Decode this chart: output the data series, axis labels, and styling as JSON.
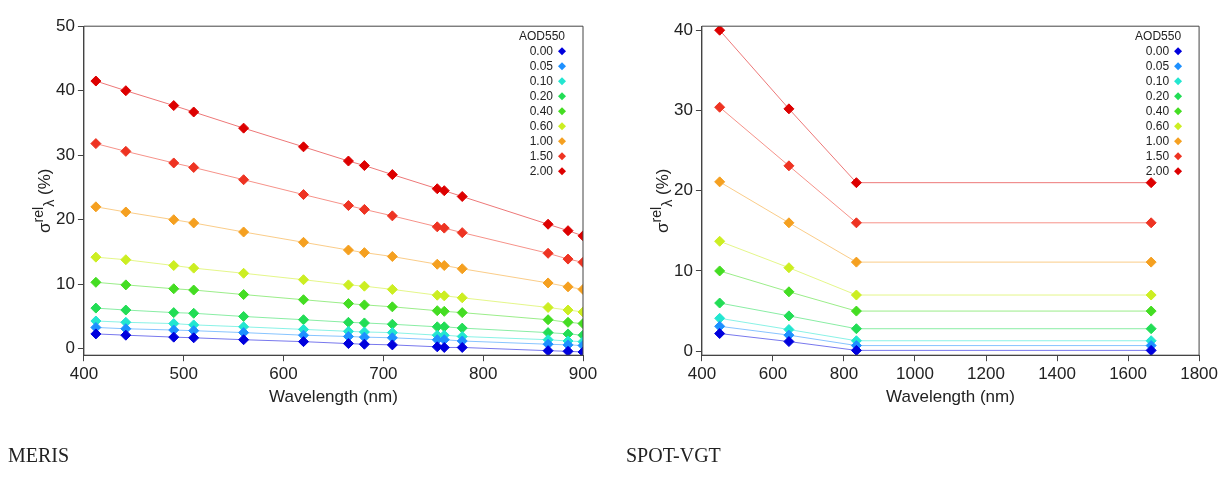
{
  "chart_data": [
    {
      "type": "line",
      "xlabel": "Wavelength (nm)",
      "ylabel": "σ$^{rel}$$_{λ}$ (%)",
      "legend_title": "AOD550",
      "legend": "top right",
      "marker": "diamond",
      "grid": false,
      "annotations": [
        "MERIS"
      ],
      "x": [
        412,
        442,
        490,
        510,
        560,
        620,
        665,
        681,
        709,
        754,
        761,
        779,
        865,
        885,
        900
      ],
      "xlim": [
        400,
        900
      ],
      "xticks": [
        400,
        500,
        600,
        700,
        800,
        900
      ],
      "ylim": [
        -1,
        50
      ],
      "yticks": [
        0,
        10,
        20,
        30,
        40,
        50
      ],
      "series": [
        {
          "name": "0.00",
          "color": "#0000dd",
          "values": [
            2.3,
            2.1,
            1.8,
            1.7,
            1.4,
            1.1,
            0.8,
            0.7,
            0.6,
            0.3,
            0.2,
            0.2,
            -0.3,
            -0.4,
            -0.5
          ]
        },
        {
          "name": "0.05",
          "color": "#1e90ff",
          "values": [
            3.3,
            3.1,
            2.9,
            2.8,
            2.5,
            2.1,
            1.9,
            1.8,
            1.7,
            1.4,
            1.4,
            1.2,
            0.7,
            0.6,
            0.5
          ]
        },
        {
          "name": "0.10",
          "color": "#22e6d0",
          "values": [
            4.3,
            4.1,
            3.9,
            3.7,
            3.4,
            3.0,
            2.7,
            2.6,
            2.5,
            2.1,
            2.1,
            1.9,
            1.4,
            1.2,
            1.1
          ]
        },
        {
          "name": "0.20",
          "color": "#22dd55",
          "values": [
            6.3,
            6.0,
            5.6,
            5.5,
            5.0,
            4.5,
            4.1,
            4.0,
            3.8,
            3.4,
            3.4,
            3.2,
            2.5,
            2.3,
            2.1
          ]
        },
        {
          "name": "0.40",
          "color": "#44dd22",
          "values": [
            10.3,
            9.9,
            9.3,
            9.1,
            8.4,
            7.6,
            7.0,
            6.8,
            6.5,
            5.9,
            5.8,
            5.6,
            4.5,
            4.1,
            3.9
          ]
        },
        {
          "name": "0.60",
          "color": "#ccee22",
          "values": [
            14.2,
            13.8,
            12.9,
            12.5,
            11.7,
            10.7,
            9.9,
            9.7,
            9.2,
            8.3,
            8.2,
            7.9,
            6.4,
            6.0,
            5.7
          ]
        },
        {
          "name": "1.00",
          "color": "#f5a020",
          "values": [
            22,
            21.2,
            20,
            19.5,
            18.1,
            16.5,
            15.3,
            14.9,
            14.3,
            13.1,
            12.9,
            12.4,
            10.2,
            9.6,
            9.2
          ]
        },
        {
          "name": "1.50",
          "color": "#ee3322",
          "values": [
            31.8,
            30.6,
            28.8,
            28.1,
            26.2,
            23.9,
            22.2,
            21.6,
            20.6,
            18.9,
            18.7,
            18.0,
            14.8,
            13.9,
            13.4
          ]
        },
        {
          "name": "2.00",
          "color": "#dd0000",
          "values": [
            41.5,
            40,
            37.7,
            36.7,
            34.2,
            31.3,
            29.1,
            28.4,
            27,
            24.8,
            24.5,
            23.6,
            19.3,
            18.3,
            17.5
          ]
        }
      ]
    },
    {
      "type": "line",
      "xlabel": "Wavelength (nm)",
      "ylabel": "σ$^{rel}$$_{λ}$ (%)",
      "legend_title": "AOD550",
      "legend": "top right",
      "marker": "diamond",
      "grid": false,
      "annotations": [
        "SPOT-VGT"
      ],
      "x": [
        450,
        645,
        835,
        1665
      ],
      "xlim": [
        400,
        1800
      ],
      "xticks": [
        400,
        600,
        800,
        1000,
        1200,
        1400,
        1600,
        1800
      ],
      "ylim": [
        -0.5,
        40.5
      ],
      "yticks": [
        0,
        10,
        20,
        30,
        40
      ],
      "series": [
        {
          "name": "0.00",
          "color": "#0000dd",
          "values": [
            2.2,
            1.2,
            0.1,
            0.1
          ]
        },
        {
          "name": "0.05",
          "color": "#1e90ff",
          "values": [
            3.1,
            2,
            0.7,
            0.7
          ]
        },
        {
          "name": "0.10",
          "color": "#22e6d0",
          "values": [
            4.1,
            2.7,
            1.3,
            1.3
          ]
        },
        {
          "name": "0.20",
          "color": "#22dd55",
          "values": [
            6,
            4.4,
            2.8,
            2.8
          ]
        },
        {
          "name": "0.40",
          "color": "#44dd22",
          "values": [
            10,
            7.4,
            5,
            5
          ]
        },
        {
          "name": "0.60",
          "color": "#ccee22",
          "values": [
            13.7,
            10.4,
            7,
            7
          ]
        },
        {
          "name": "1.00",
          "color": "#f5a020",
          "values": [
            21.1,
            16,
            11.1,
            11.1
          ]
        },
        {
          "name": "1.50",
          "color": "#ee3322",
          "values": [
            30.4,
            23.1,
            16,
            16
          ]
        },
        {
          "name": "2.00",
          "color": "#dd0000",
          "values": [
            40,
            30.2,
            21,
            21
          ]
        }
      ]
    }
  ]
}
